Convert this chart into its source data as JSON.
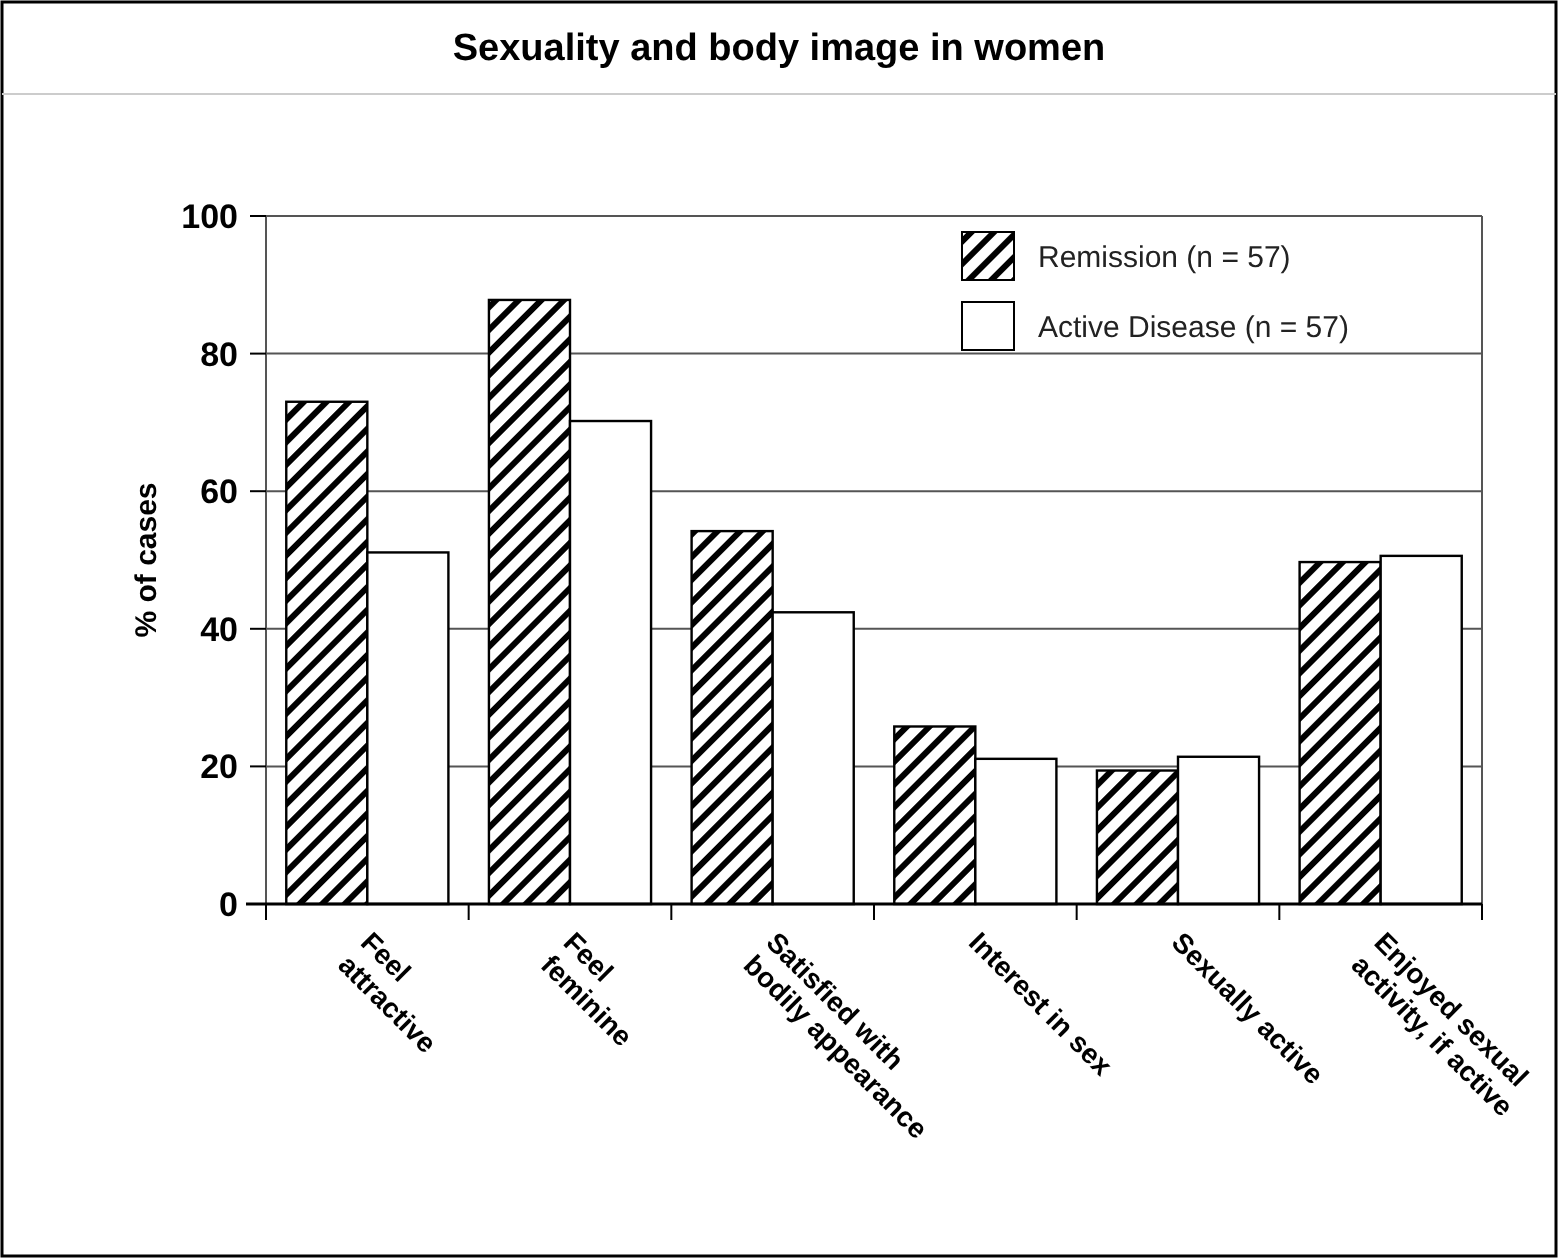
{
  "chart_data": {
    "type": "bar",
    "title": "Sexuality and body image in women",
    "ylabel": "% of cases",
    "categories": [
      "Feel\nattractive",
      "Feel\nfeminine",
      "Satisfied with\nbodily appearance",
      "Interest in sex",
      "Sexually active",
      "Enjoyed sexual\nactivity, if active"
    ],
    "series": [
      {
        "name": "Remission (n = 57)",
        "color": "#000000",
        "values": [
          73,
          87.8,
          54.2,
          25.8,
          19.4,
          49.7
        ]
      },
      {
        "name": "Active Disease (n = 57)",
        "color": "#ffffff",
        "values": [
          51.1,
          70.2,
          42.4,
          21.1,
          21.4,
          50.6
        ]
      }
    ],
    "ylim": [
      0,
      100
    ],
    "yticks": [
      0,
      20,
      40,
      60,
      80,
      100
    ],
    "grid": "y",
    "legend": "top right"
  }
}
